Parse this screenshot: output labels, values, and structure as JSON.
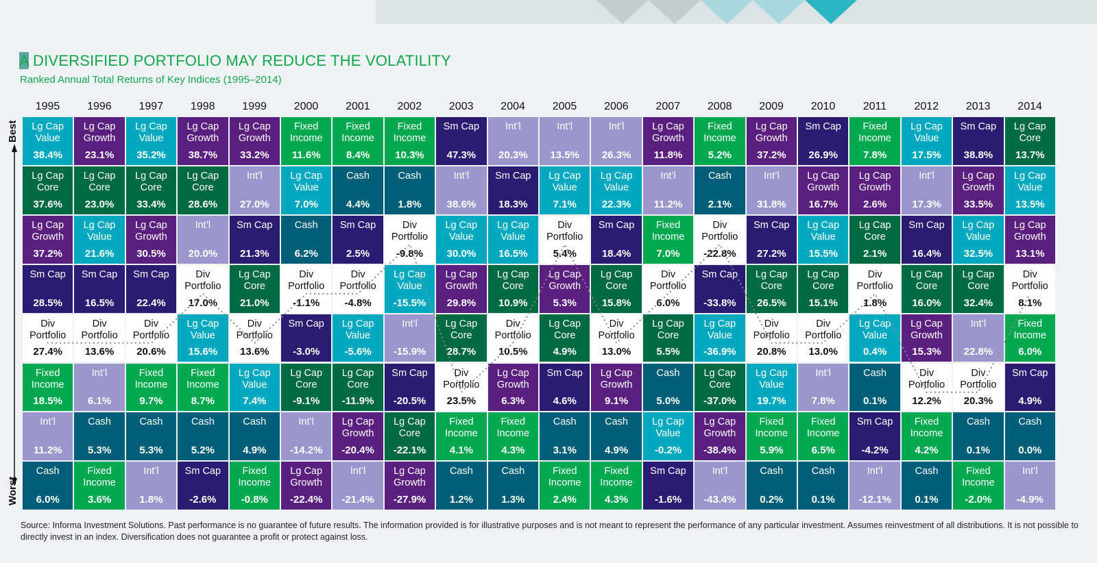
{
  "header": {
    "title_first_letter": "A",
    "title_rest": " DIVERSIFIED PORTFOLIO MAY REDUCE THE VOLATILITY",
    "subtitle": "Ranked Annual Total Returns of Key Indices (1995–2014)"
  },
  "axis": {
    "best": "Best",
    "worst": "Worst"
  },
  "footer": "Source: Informa Investment Solutions. Past performance is no guarantee of future results. The information provided is for illustrative purposes and is not meant to represent the performance of any particular investment. Assumes reinvestment of all distributions. It is not possible to directly invest in an index. Diversification does not guarantee a profit or protect against loss.",
  "chart_data": {
    "type": "table",
    "title": "A DIVERSIFIED PORTFOLIO MAY REDUCE THE VOLATILITY",
    "subtitle": "Ranked Annual Total Returns of Key Indices (1995–2014)",
    "categories": {
      "LCV": {
        "name": "Lg Cap Value",
        "color": "#00a9bf"
      },
      "LCG": {
        "name": "Lg Cap Growth",
        "color": "#5b1f80"
      },
      "LCC": {
        "name": "Lg Cap Core",
        "color": "#006a42"
      },
      "INT": {
        "name": "Int’l",
        "color": "#9a97cc"
      },
      "SC": {
        "name": "Sm Cap",
        "color": "#2b1b73"
      },
      "FI": {
        "name": "Fixed Income",
        "color": "#00a94f"
      },
      "CASH": {
        "name": "Cash",
        "color": "#005f78"
      },
      "DIV": {
        "name": "Div Portfolio",
        "color": "#ffffff"
      }
    },
    "columns": [
      {
        "year": "1995",
        "cells": [
          [
            "LCV",
            "38.4%"
          ],
          [
            "LCC",
            "37.6%"
          ],
          [
            "LCG",
            "37.2%"
          ],
          [
            "SC",
            "28.5%"
          ],
          [
            "DIV",
            "27.4%"
          ],
          [
            "FI",
            "18.5%"
          ],
          [
            "INT",
            "11.2%"
          ],
          [
            "CASH",
            "6.0%"
          ]
        ]
      },
      {
        "year": "1996",
        "cells": [
          [
            "LCG",
            "23.1%"
          ],
          [
            "LCC",
            "23.0%"
          ],
          [
            "LCV",
            "21.6%"
          ],
          [
            "SC",
            "16.5%"
          ],
          [
            "DIV",
            "13.6%"
          ],
          [
            "INT",
            "6.1%"
          ],
          [
            "CASH",
            "5.3%"
          ],
          [
            "FI",
            "3.6%"
          ]
        ]
      },
      {
        "year": "1997",
        "cells": [
          [
            "LCV",
            "35.2%"
          ],
          [
            "LCC",
            "33.4%"
          ],
          [
            "LCG",
            "30.5%"
          ],
          [
            "SC",
            "22.4%"
          ],
          [
            "DIV",
            "20.6%"
          ],
          [
            "FI",
            "9.7%"
          ],
          [
            "CASH",
            "5.3%"
          ],
          [
            "INT",
            "1.8%"
          ]
        ]
      },
      {
        "year": "1998",
        "cells": [
          [
            "LCG",
            "38.7%"
          ],
          [
            "LCC",
            "28.6%"
          ],
          [
            "INT",
            "20.0%"
          ],
          [
            "DIV",
            "17.0%"
          ],
          [
            "LCV",
            "15.6%"
          ],
          [
            "FI",
            "8.7%"
          ],
          [
            "CASH",
            "5.2%"
          ],
          [
            "SC",
            "-2.6%"
          ]
        ]
      },
      {
        "year": "1999",
        "cells": [
          [
            "LCG",
            "33.2%"
          ],
          [
            "INT",
            "27.0%"
          ],
          [
            "SC",
            "21.3%"
          ],
          [
            "LCC",
            "21.0%"
          ],
          [
            "DIV",
            "13.6%"
          ],
          [
            "LCV",
            "7.4%"
          ],
          [
            "CASH",
            "4.9%"
          ],
          [
            "FI",
            "-0.8%"
          ]
        ]
      },
      {
        "year": "2000",
        "cells": [
          [
            "FI",
            "11.6%"
          ],
          [
            "LCV",
            "7.0%"
          ],
          [
            "CASH",
            "6.2%"
          ],
          [
            "DIV",
            "-1.1%"
          ],
          [
            "SC",
            "-3.0%"
          ],
          [
            "LCC",
            "-9.1%"
          ],
          [
            "INT",
            "-14.2%"
          ],
          [
            "LCG",
            "-22.4%"
          ]
        ]
      },
      {
        "year": "2001",
        "cells": [
          [
            "FI",
            "8.4%"
          ],
          [
            "CASH",
            "4.4%"
          ],
          [
            "SC",
            "2.5%"
          ],
          [
            "DIV",
            "-4.8%"
          ],
          [
            "LCV",
            "-5.6%"
          ],
          [
            "LCC",
            "-11.9%"
          ],
          [
            "LCG",
            "-20.4%"
          ],
          [
            "INT",
            "-21.4%"
          ]
        ]
      },
      {
        "year": "2002",
        "cells": [
          [
            "FI",
            "10.3%"
          ],
          [
            "CASH",
            "1.8%"
          ],
          [
            "DIV",
            "-9.8%"
          ],
          [
            "LCV",
            "-15.5%"
          ],
          [
            "INT",
            "-15.9%"
          ],
          [
            "SC",
            "-20.5%"
          ],
          [
            "LCC",
            "-22.1%"
          ],
          [
            "LCG",
            "-27.9%"
          ]
        ]
      },
      {
        "year": "2003",
        "cells": [
          [
            "SC",
            "47.3%"
          ],
          [
            "INT",
            "38.6%"
          ],
          [
            "LCV",
            "30.0%"
          ],
          [
            "LCG",
            "29.8%"
          ],
          [
            "LCC",
            "28.7%"
          ],
          [
            "DIV",
            "23.5%"
          ],
          [
            "FI",
            "4.1%"
          ],
          [
            "CASH",
            "1.2%"
          ]
        ]
      },
      {
        "year": "2004",
        "cells": [
          [
            "INT",
            "20.3%"
          ],
          [
            "SC",
            "18.3%"
          ],
          [
            "LCV",
            "16.5%"
          ],
          [
            "LCC",
            "10.9%"
          ],
          [
            "DIV",
            "10.5%"
          ],
          [
            "LCG",
            "6.3%"
          ],
          [
            "FI",
            "4.3%"
          ],
          [
            "CASH",
            "1.3%"
          ]
        ]
      },
      {
        "year": "2005",
        "cells": [
          [
            "INT",
            "13.5%"
          ],
          [
            "LCV",
            "7.1%"
          ],
          [
            "DIV",
            "5.4%"
          ],
          [
            "LCG",
            "5.3%"
          ],
          [
            "LCC",
            "4.9%"
          ],
          [
            "SC",
            "4.6%"
          ],
          [
            "CASH",
            "3.1%"
          ],
          [
            "FI",
            "2.4%"
          ]
        ]
      },
      {
        "year": "2006",
        "cells": [
          [
            "INT",
            "26.3%"
          ],
          [
            "LCV",
            "22.3%"
          ],
          [
            "SC",
            "18.4%"
          ],
          [
            "LCC",
            "15.8%"
          ],
          [
            "DIV",
            "13.0%"
          ],
          [
            "LCG",
            "9.1%"
          ],
          [
            "CASH",
            "4.9%"
          ],
          [
            "FI",
            "4.3%"
          ]
        ]
      },
      {
        "year": "2007",
        "cells": [
          [
            "LCG",
            "11.8%"
          ],
          [
            "INT",
            "11.2%"
          ],
          [
            "FI",
            "7.0%"
          ],
          [
            "DIV",
            "6.0%"
          ],
          [
            "LCC",
            "5.5%"
          ],
          [
            "CASH",
            "5.0%"
          ],
          [
            "LCV",
            "-0.2%"
          ],
          [
            "SC",
            "-1.6%"
          ]
        ]
      },
      {
        "year": "2008",
        "cells": [
          [
            "FI",
            "5.2%"
          ],
          [
            "CASH",
            "2.1%"
          ],
          [
            "DIV",
            "-22.8%"
          ],
          [
            "SC",
            "-33.8%"
          ],
          [
            "LCV",
            "-36.9%"
          ],
          [
            "LCC",
            "-37.0%"
          ],
          [
            "LCG",
            "-38.4%"
          ],
          [
            "INT",
            "-43.4%"
          ]
        ]
      },
      {
        "year": "2009",
        "cells": [
          [
            "LCG",
            "37.2%"
          ],
          [
            "INT",
            "31.8%"
          ],
          [
            "SC",
            "27.2%"
          ],
          [
            "LCC",
            "26.5%"
          ],
          [
            "DIV",
            "20.8%"
          ],
          [
            "LCV",
            "19.7%"
          ],
          [
            "FI",
            "5.9%"
          ],
          [
            "CASH",
            "0.2%"
          ]
        ]
      },
      {
        "year": "2010",
        "cells": [
          [
            "SC",
            "26.9%"
          ],
          [
            "LCG",
            "16.7%"
          ],
          [
            "LCV",
            "15.5%"
          ],
          [
            "LCC",
            "15.1%"
          ],
          [
            "DIV",
            "13.0%"
          ],
          [
            "INT",
            "7.8%"
          ],
          [
            "FI",
            "6.5%"
          ],
          [
            "CASH",
            "0.1%"
          ]
        ]
      },
      {
        "year": "2011",
        "cells": [
          [
            "FI",
            "7.8%"
          ],
          [
            "LCG",
            "2.6%"
          ],
          [
            "LCC",
            "2.1%"
          ],
          [
            "DIV",
            "1.8%"
          ],
          [
            "LCV",
            "0.4%"
          ],
          [
            "CASH",
            "0.1%"
          ],
          [
            "SC",
            "-4.2%"
          ],
          [
            "INT",
            "-12.1%"
          ]
        ]
      },
      {
        "year": "2012",
        "cells": [
          [
            "LCV",
            "17.5%"
          ],
          [
            "INT",
            "17.3%"
          ],
          [
            "SC",
            "16.4%"
          ],
          [
            "LCC",
            "16.0%"
          ],
          [
            "LCG",
            "15.3%"
          ],
          [
            "DIV",
            "12.2%"
          ],
          [
            "FI",
            "4.2%"
          ],
          [
            "CASH",
            "0.1%"
          ]
        ]
      },
      {
        "year": "2013",
        "cells": [
          [
            "SC",
            "38.8%"
          ],
          [
            "LCG",
            "33.5%"
          ],
          [
            "LCV",
            "32.5%"
          ],
          [
            "LCC",
            "32.4%"
          ],
          [
            "INT",
            "22.8%"
          ],
          [
            "DIV",
            "20.3%"
          ],
          [
            "CASH",
            "0.1%"
          ],
          [
            "FI",
            "-2.0%"
          ]
        ]
      },
      {
        "year": "2014",
        "cells": [
          [
            "LCC",
            "13.7%"
          ],
          [
            "LCV",
            "13.5%"
          ],
          [
            "LCG",
            "13.1%"
          ],
          [
            "DIV",
            "8.1%"
          ],
          [
            "FI",
            "6.0%"
          ],
          [
            "SC",
            "4.9%"
          ],
          [
            "CASH",
            "0.0%"
          ],
          [
            "INT",
            "-4.9%"
          ]
        ]
      }
    ],
    "connector": "dotted line through Div Portfolio cells",
    "band_colors": [
      "#c5ccd0",
      "#c5ccd0",
      "#a8d8dd",
      "#a8d8dd",
      "#2ab5c2"
    ]
  }
}
